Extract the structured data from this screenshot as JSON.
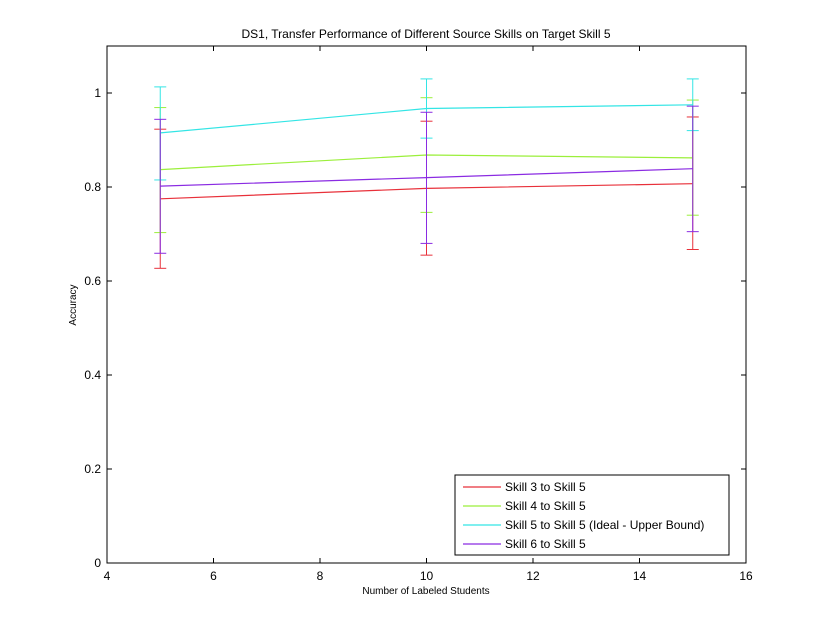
{
  "chart_data": {
    "type": "line",
    "title": "DS1, Transfer Performance of Different Source Skills on Target Skill 5",
    "xlabel": "Number of Labeled Students",
    "ylabel": "Accuracy",
    "xlim": [
      4,
      16
    ],
    "ylim": [
      0,
      1.1
    ],
    "xticks": [
      4,
      6,
      8,
      10,
      12,
      14,
      16
    ],
    "yticks": [
      0,
      0.2,
      0.4,
      0.6,
      0.8,
      1
    ],
    "xtick_labels": [
      "4",
      "6",
      "8",
      "10",
      "12",
      "14",
      "16"
    ],
    "ytick_labels": [
      "0",
      "0.2",
      "0.4",
      "0.6",
      "0.8",
      "1"
    ],
    "grid": false,
    "legend_position": "bottom-right",
    "x": [
      5,
      10,
      15
    ],
    "series": [
      {
        "name": "Skill 3 to Skill 5",
        "color": "#e8303a",
        "values": [
          0.775,
          0.797,
          0.807
        ],
        "err_low": [
          0.627,
          0.655,
          0.667
        ],
        "err_high": [
          0.923,
          0.94,
          0.949
        ]
      },
      {
        "name": "Skill 4 to Skill 5",
        "color": "#9bef3b",
        "values": [
          0.837,
          0.868,
          0.862
        ],
        "err_low": [
          0.703,
          0.746,
          0.74
        ],
        "err_high": [
          0.969,
          0.99,
          0.985
        ]
      },
      {
        "name": "Skill 5 to Skill 5 (Ideal - Upper Bound)",
        "color": "#33e5e5",
        "values": [
          0.915,
          0.967,
          0.975
        ],
        "err_low": [
          0.815,
          0.904,
          0.92
        ],
        "err_high": [
          1.013,
          1.03,
          1.03
        ]
      },
      {
        "name": "Skill 6 to Skill 5",
        "color": "#8a2be2",
        "values": [
          0.802,
          0.82,
          0.839
        ],
        "err_low": [
          0.659,
          0.68,
          0.705
        ],
        "err_high": [
          0.944,
          0.959,
          0.972
        ]
      }
    ]
  }
}
